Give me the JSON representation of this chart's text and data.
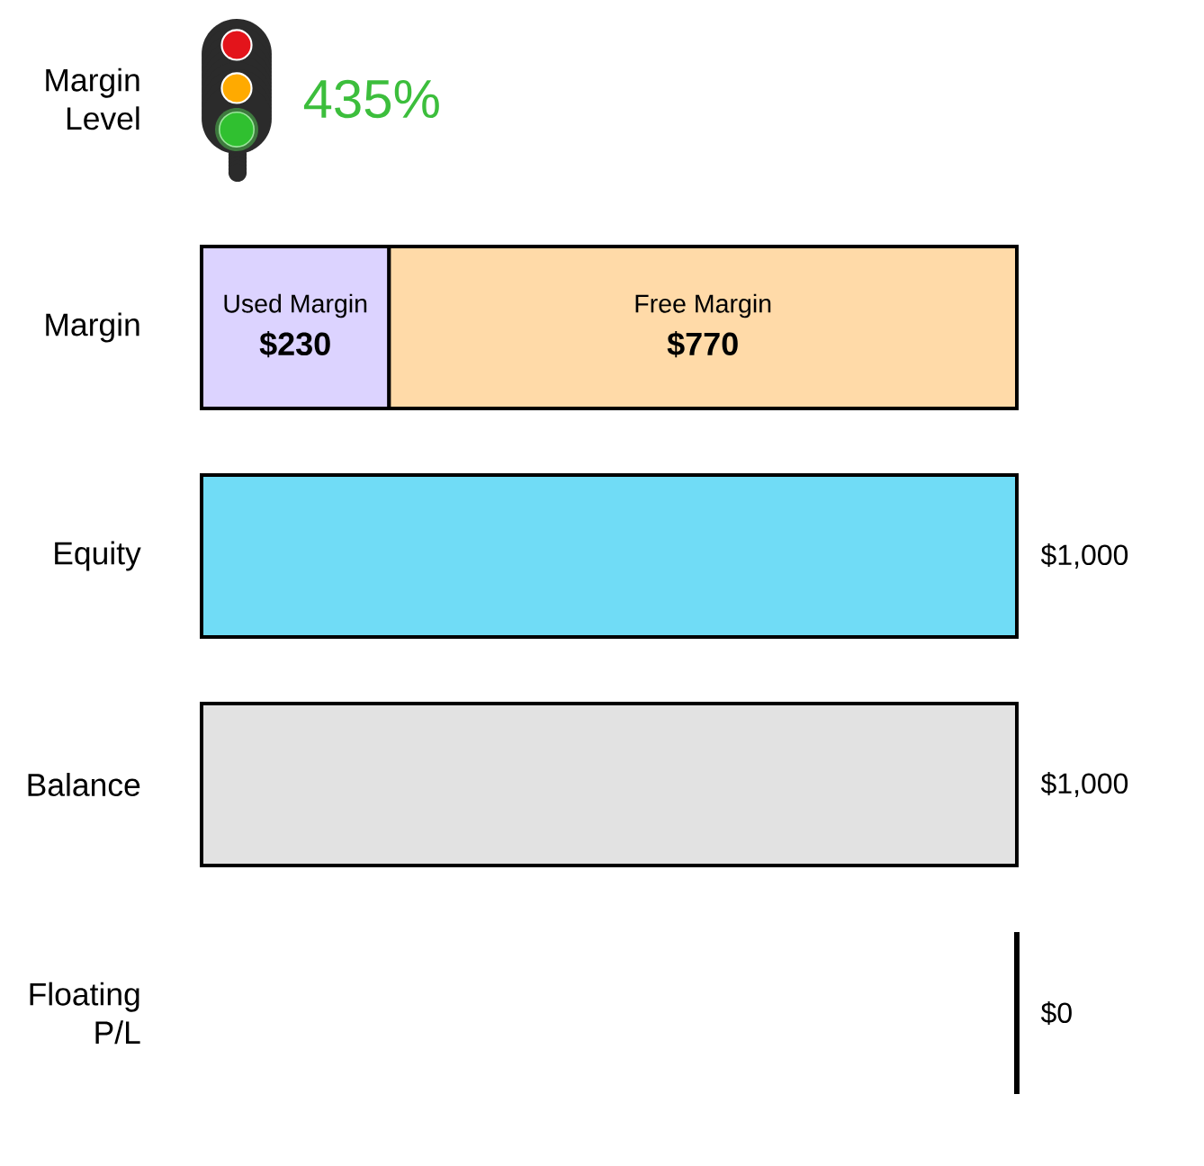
{
  "chart_data": {
    "type": "bar",
    "orientation": "horizontal",
    "stacked": true,
    "categories": [
      "Margin Level",
      "Margin",
      "Equity",
      "Balance",
      "Floating P/L"
    ],
    "xlim": [
      0,
      1000
    ],
    "tick_labels": "y",
    "series": [
      {
        "name": "Used Margin",
        "color": "#dcd3ff",
        "values": [
          null,
          230,
          null,
          null,
          null
        ],
        "value_labels": [
          null,
          "$230",
          null,
          null,
          null
        ]
      },
      {
        "name": "Free Margin",
        "color": "#ffdaa8",
        "values": [
          null,
          770,
          null,
          null,
          null
        ],
        "value_labels": [
          null,
          "$770",
          null,
          null,
          null
        ]
      },
      {
        "color": "#70dcf6",
        "values": [
          null,
          null,
          1000,
          null,
          null
        ],
        "value_labels": [
          null,
          null,
          "$1,000",
          null,
          null
        ]
      },
      {
        "color": "#e2e2e2",
        "values": [
          null,
          null,
          null,
          1000,
          null
        ],
        "value_labels": [
          null,
          null,
          null,
          "$1,000",
          null
        ]
      }
    ],
    "ref_lines": [
      {
        "axis": "x",
        "value": 1000,
        "color": "#000000"
      }
    ],
    "annotations": [
      "435%",
      {
        "text": "$0",
        "x": 1000
      }
    ]
  }
}
